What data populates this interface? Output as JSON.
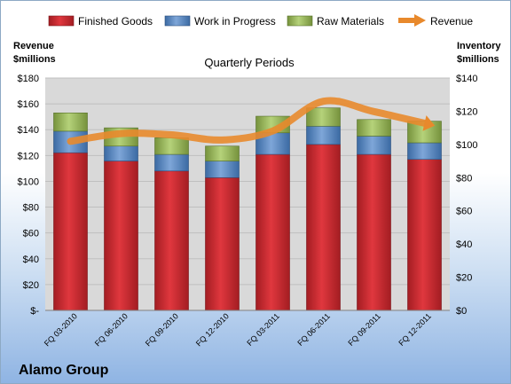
{
  "company": "Alamo Group",
  "chart_data": {
    "type": "bar",
    "stacked": true,
    "title": "Quarterly Periods",
    "categories": [
      "FQ 03-2010",
      "FQ 06-2010",
      "FQ 09-2010",
      "FQ 12-2010",
      "FQ 03-2011",
      "FQ 06-2011",
      "FQ 09-2011",
      "FQ 12-2011"
    ],
    "ylabel_left": [
      "Revenue",
      "$millions"
    ],
    "ylabel_right": [
      "Inventory",
      "$millions"
    ],
    "ylim_left": [
      0,
      180
    ],
    "ylim_right": [
      0,
      140
    ],
    "yticks_left": [
      "$-",
      "$20",
      "$40",
      "$60",
      "$80",
      "$100",
      "$120",
      "$140",
      "$160",
      "$180"
    ],
    "yticks_right": [
      "$0",
      "$20",
      "$40",
      "$60",
      "$80",
      "$100",
      "$120",
      "$140"
    ],
    "grid": true,
    "legend_position": "top",
    "series": [
      {
        "name": "Finished Goods",
        "axis": "right",
        "color": "#c0272d",
        "values": [
          95,
          90,
          84,
          80,
          94,
          100,
          94,
          91
        ]
      },
      {
        "name": "Work in Progress",
        "axis": "right",
        "color": "#4f81bd",
        "values": [
          13,
          9,
          10,
          10,
          13,
          11,
          11,
          10
        ]
      },
      {
        "name": "Raw Materials",
        "axis": "right",
        "color": "#9bbb59",
        "values": [
          11,
          11,
          10,
          9,
          10,
          11,
          10,
          13
        ]
      },
      {
        "name": "Revenue",
        "axis": "left",
        "type": "line",
        "color": "#e8892c",
        "values": [
          131,
          137,
          136,
          132,
          139,
          162,
          154,
          145
        ]
      }
    ]
  }
}
